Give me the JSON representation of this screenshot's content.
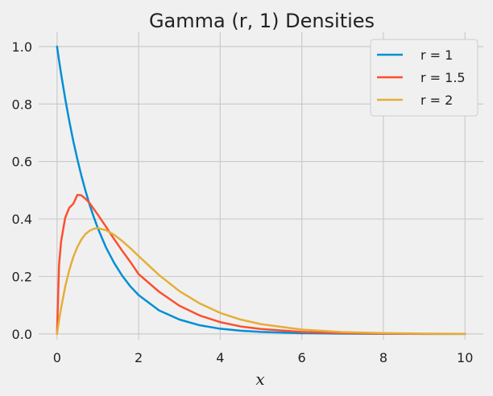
{
  "chart_data": {
    "type": "line",
    "title": "Gamma (r, 1) Densities",
    "xlabel": "x",
    "ylabel": "",
    "xlim": [
      -0.45,
      10.45
    ],
    "ylim": [
      -0.02,
      1.05
    ],
    "xticks": [
      0,
      2,
      4,
      6,
      8,
      10
    ],
    "yticks": [
      0.0,
      0.2,
      0.4,
      0.6,
      0.8,
      1.0
    ],
    "xtick_labels": [
      "0",
      "2",
      "4",
      "6",
      "8",
      "10"
    ],
    "ytick_labels": [
      "0.0",
      "0.2",
      "0.4",
      "0.6",
      "0.8",
      "1.0"
    ],
    "grid": true,
    "legend_position": "top-right",
    "x": [
      0,
      0.05,
      0.1,
      0.2,
      0.3,
      0.4,
      0.5,
      0.6,
      0.7,
      0.8,
      0.9,
      1.0,
      1.2,
      1.4,
      1.6,
      1.8,
      2.0,
      2.5,
      3.0,
      3.5,
      4.0,
      4.5,
      5.0,
      6.0,
      7.0,
      8.0,
      9.0,
      10.0
    ],
    "series": [
      {
        "name": "r = 1",
        "color": "#008fd5",
        "values": [
          1.0,
          0.951,
          0.905,
          0.819,
          0.741,
          0.67,
          0.607,
          0.549,
          0.497,
          0.449,
          0.407,
          0.368,
          0.301,
          0.247,
          0.202,
          0.165,
          0.135,
          0.082,
          0.05,
          0.03,
          0.018,
          0.011,
          0.007,
          0.0025,
          0.0009,
          0.0003,
          0.0001,
          5e-05
        ]
      },
      {
        "name": "r = 1.5",
        "color": "#fc4f30",
        "values": [
          0.0,
          0.24,
          0.322,
          0.404,
          0.439,
          0.453,
          0.484,
          0.482,
          0.47,
          0.455,
          0.435,
          0.415,
          0.373,
          0.33,
          0.289,
          0.25,
          0.208,
          0.147,
          0.098,
          0.064,
          0.041,
          0.026,
          0.017,
          0.0068,
          0.0026,
          0.001,
          0.0004,
          0.00015
        ]
      },
      {
        "name": "r = 2",
        "color": "#e5ae38",
        "values": [
          0.0,
          0.048,
          0.09,
          0.164,
          0.222,
          0.268,
          0.303,
          0.329,
          0.348,
          0.359,
          0.366,
          0.368,
          0.361,
          0.345,
          0.323,
          0.298,
          0.271,
          0.205,
          0.149,
          0.106,
          0.073,
          0.05,
          0.034,
          0.015,
          0.0064,
          0.0027,
          0.0011,
          0.00045
        ]
      }
    ]
  }
}
